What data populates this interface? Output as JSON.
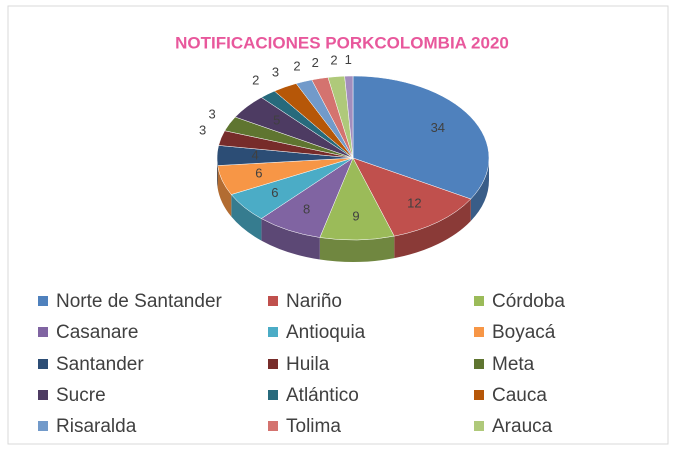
{
  "chart_data": {
    "type": "pie3d",
    "title": "NOTIFICACIONES PORKCOLOMBIA 2020",
    "categories": [
      "Norte de Santander",
      "Nariño",
      "Córdoba",
      "Casanare",
      "Antioquia",
      "Boyacá",
      "Santander",
      "Huila",
      "Meta",
      "Sucre",
      "Atlántico",
      "Cauca",
      "Risaralda",
      "Tolima",
      "Arauca",
      null
    ],
    "values": [
      34,
      12,
      9,
      8,
      6,
      6,
      4,
      3,
      3,
      5,
      2,
      3,
      2,
      2,
      2,
      1
    ],
    "colors": [
      "#4f81bd",
      "#c0504d",
      "#9bbb59",
      "#8064a2",
      "#4bacc6",
      "#f79646",
      "#2c4d75",
      "#772c2a",
      "#5f7530",
      "#4d3b62",
      "#276a7c",
      "#b65708",
      "#729aca",
      "#d4736f",
      "#afc97a",
      "#a28dbd"
    ],
    "legend": "bottom"
  }
}
